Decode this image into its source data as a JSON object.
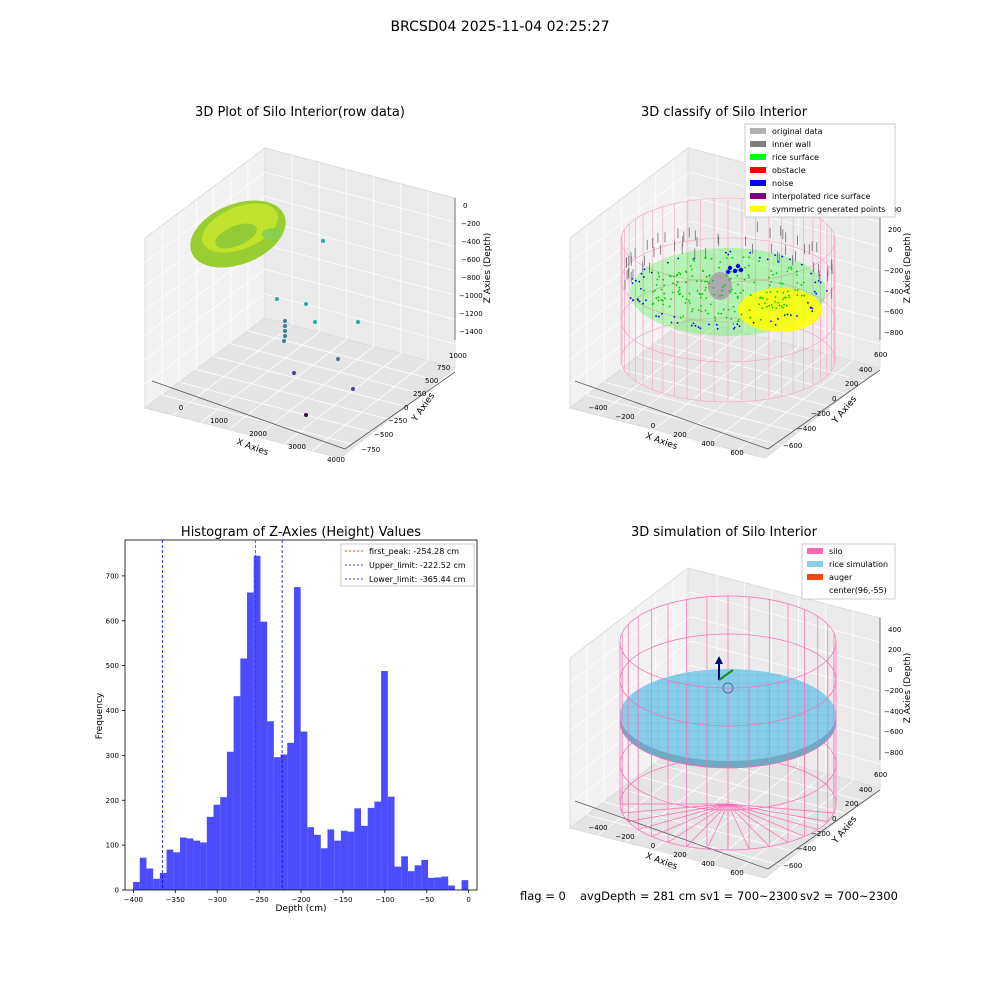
{
  "figure": {
    "suptitle": "BRCSD04 2025-11-04 02:25:27",
    "footer": {
      "flag": "flag = 0",
      "avg_depth": "avgDepth = 281 cm",
      "sv1": "sv1 = 700~2300",
      "sv2": "sv2 = 700~2300"
    }
  },
  "panel_raw": {
    "title": "3D Plot of Silo Interior(row data)",
    "xlabel": "X Axies",
    "ylabel": "Y Axies",
    "zlabel": "Z Axies (Depth)",
    "x_ticks": [
      "0",
      "1000",
      "2000",
      "3000",
      "4000"
    ],
    "y_ticks": [
      "1000",
      "750",
      "500",
      "250",
      "0",
      "−250",
      "−500",
      "−750"
    ],
    "z_ticks": [
      "0",
      "−200",
      "−400",
      "−600",
      "−800",
      "−1000",
      "−1200",
      "−1400"
    ],
    "colors": {
      "surface": "#9ACD32",
      "surface_light": "#C8E62E",
      "scatter": [
        "#2FA7A0",
        "#3E7C9A",
        "#46478E",
        "#440154"
      ]
    }
  },
  "panel_classify": {
    "title": "3D classify of Silo Interior",
    "xlabel": "X Axies",
    "ylabel": "Y Axies",
    "zlabel": "Z Axies (Depth)",
    "x_ticks": [
      "−400",
      "−200",
      "0",
      "200",
      "400",
      "600"
    ],
    "y_ticks": [
      "600",
      "400",
      "200",
      "0",
      "−200",
      "−400",
      "−600"
    ],
    "z_ticks": [
      "400",
      "200",
      "0",
      "−200",
      "−400",
      "−600",
      "−800"
    ],
    "legend": [
      {
        "label": "original data",
        "color": "#b0b0b0"
      },
      {
        "label": "inner wall",
        "color": "#808080"
      },
      {
        "label": "rice surface",
        "color": "#00ff00"
      },
      {
        "label": "obstacle",
        "color": "#ff0000"
      },
      {
        "label": "noise",
        "color": "#0000ff"
      },
      {
        "label": "interpolated rice surface",
        "color": "#800080"
      },
      {
        "label": "symmetric generated points",
        "color": "#ffff00"
      }
    ],
    "colors": {
      "wire": "#ff9ec9"
    }
  },
  "panel_sim": {
    "title": "3D simulation of Silo Interior",
    "xlabel": "X Axies",
    "ylabel": "Y Axies",
    "zlabel": "Z Axies (Depth)",
    "x_ticks": [
      "−400",
      "−200",
      "0",
      "200",
      "400",
      "600"
    ],
    "y_ticks": [
      "600",
      "400",
      "200",
      "0",
      "−200",
      "−400",
      "−600"
    ],
    "z_ticks": [
      "400",
      "200",
      "0",
      "−200",
      "−400",
      "−600",
      "−800"
    ],
    "legend": [
      {
        "label": "silo",
        "color": "#ff69b4"
      },
      {
        "label": "rice simulation",
        "color": "#87ceeb"
      },
      {
        "label": "auger",
        "color": "#ff4500"
      },
      {
        "label": "center(96,-55)",
        "color": ""
      }
    ]
  },
  "chart_data": {
    "type": "bar",
    "title": "Histogram of Z-Axies (Height) Values",
    "xlabel": "Depth (cm)",
    "ylabel": "Frequency",
    "xlim": [
      -410,
      10
    ],
    "ylim": [
      0,
      780
    ],
    "x_ticks": [
      -400,
      -350,
      -300,
      -250,
      -200,
      -150,
      -100,
      -50,
      0
    ],
    "y_ticks": [
      0,
      100,
      200,
      300,
      400,
      500,
      600,
      700
    ],
    "bin_edges_start": -400.4,
    "bin_width": 8.0,
    "values": [
      18,
      72,
      48,
      25,
      38,
      90,
      84,
      117,
      115,
      110,
      106,
      163,
      190,
      207,
      308,
      432,
      516,
      663,
      745,
      598,
      376,
      296,
      302,
      328,
      675,
      353,
      140,
      123,
      93,
      135,
      110,
      132,
      130,
      182,
      143,
      183,
      197,
      488,
      208,
      52,
      75,
      42,
      55,
      67,
      27,
      28,
      30,
      10,
      0,
      22
    ],
    "bar_color": "#0000ff",
    "lines": [
      {
        "label": "first_peak: -254.28 cm",
        "x": -254.28,
        "color": "#ff0000"
      },
      {
        "label": "Upper_limit: -222.52 cm",
        "x": -222.52,
        "color": "#0000ff"
      },
      {
        "label": "Lower_limit: -365.44 cm",
        "x": -365.44,
        "color": "#0000ff"
      }
    ],
    "legend_position": "upper right"
  }
}
